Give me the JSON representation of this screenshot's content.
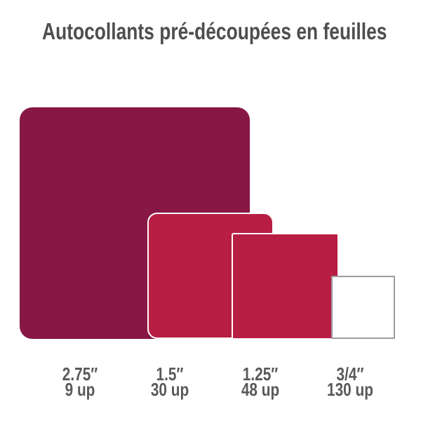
{
  "title": "Autocollants pré-découpées en feuilles",
  "colors": {
    "background": "#FFFFFF",
    "large_square_fill": "#871745",
    "medium_square_fill": "#B81E44",
    "small_square_fill": "#B81E44",
    "tiny_square_fill": "#FFFFFF",
    "inner_border": "#FFFFFF",
    "tiny_square_border": "#9D9DA0",
    "title_text": "#4D4E50",
    "label_text": "#58595B"
  },
  "sizes": [
    {
      "size_label": "2.75″",
      "count_label": "9 up",
      "size_inches": 2.75,
      "per_sheet": 9
    },
    {
      "size_label": "1.5″",
      "count_label": "30 up",
      "size_inches": 1.5,
      "per_sheet": 30
    },
    {
      "size_label": "1.25″",
      "count_label": "48 up",
      "size_inches": 1.25,
      "per_sheet": 48
    },
    {
      "size_label": "3/4″",
      "count_label": "130 up",
      "size_inches": 0.75,
      "per_sheet": 130
    }
  ]
}
